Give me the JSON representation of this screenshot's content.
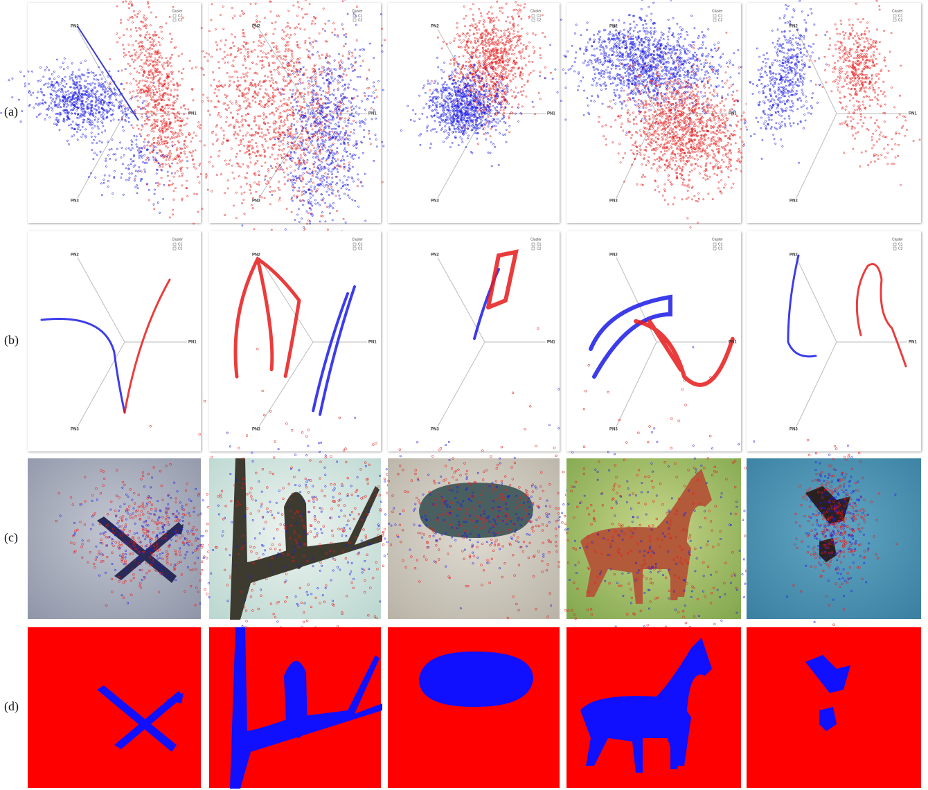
{
  "rows": [
    {
      "label": "(a)",
      "panels": [
        {
          "axes": [
            "PN1",
            "PN2",
            "PN3"
          ],
          "legend": {
            "title": "Cluster",
            "items": [
              "C1",
              "C2"
            ]
          }
        },
        {
          "axes": [
            "PN1",
            "PN2",
            "PN3"
          ],
          "legend": {
            "title": "Cluster",
            "items": [
              "C1",
              "C2"
            ]
          }
        },
        {
          "axes": [
            "PN1",
            "PN2",
            "PN3"
          ],
          "legend": {
            "title": "Cluster",
            "items": [
              "C1",
              "C2"
            ]
          }
        },
        {
          "axes": [
            "PN1",
            "PN2",
            "PN3"
          ],
          "legend": {
            "title": "Cluster",
            "items": [
              "C1",
              "C2"
            ]
          }
        },
        {
          "axes": [
            "PN1",
            "PN2",
            "PN3"
          ],
          "legend": {
            "title": "Cluster",
            "items": [
              "C1",
              "C2"
            ]
          }
        }
      ]
    },
    {
      "label": "(b)",
      "panels": [
        {
          "axes": [
            "PN1",
            "PN2",
            "PN3"
          ],
          "legend": {
            "title": "Cluster",
            "items": [
              "C1",
              "C2"
            ]
          }
        },
        {
          "axes": [
            "PN1",
            "PN2",
            "PN3"
          ],
          "legend": {
            "title": "Cluster",
            "items": [
              "C1",
              "C2"
            ]
          }
        },
        {
          "axes": [
            "PN1",
            "PN2",
            "PN3"
          ],
          "legend": {
            "title": "Cluster",
            "items": [
              "C1",
              "C2"
            ]
          }
        },
        {
          "axes": [
            "PN1",
            "PN2",
            "PN3"
          ],
          "legend": {
            "title": "Cluster",
            "items": [
              "C1",
              "C2"
            ]
          }
        },
        {
          "axes": [
            "PN1",
            "PN2",
            "PN3"
          ],
          "legend": {
            "title": "Cluster",
            "items": [
              "C1",
              "C2"
            ]
          }
        }
      ]
    },
    {
      "label": "(c)"
    },
    {
      "label": "(d)"
    }
  ]
}
